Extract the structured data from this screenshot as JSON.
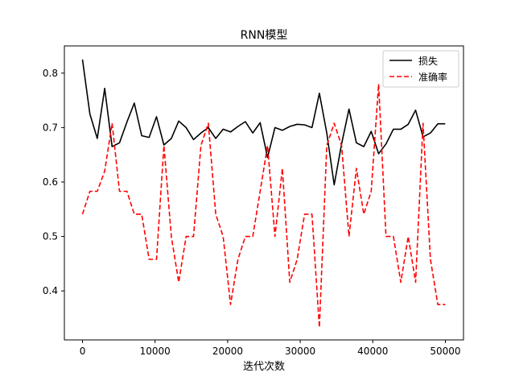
{
  "chart_data": {
    "type": "line",
    "title": "RNN模型",
    "xlabel": "迭代次数",
    "ylabel": "",
    "xlim": [
      -2500,
      52500
    ],
    "ylim": [
      0.31,
      0.85
    ],
    "xticks": [
      0,
      10000,
      20000,
      30000,
      40000,
      50000
    ],
    "yticks": [
      0.4,
      0.5,
      0.6,
      0.7,
      0.8
    ],
    "grid": false,
    "legend_position": "top-right",
    "x": [
      0,
      1020,
      2040,
      3060,
      4080,
      5100,
      6120,
      7140,
      8160,
      9180,
      10200,
      11220,
      12240,
      13260,
      14280,
      15300,
      16320,
      17340,
      18360,
      19380,
      20400,
      21420,
      22440,
      23460,
      24480,
      25500,
      26520,
      27540,
      28560,
      29580,
      30600,
      31620,
      32640,
      33660,
      34680,
      35700,
      36720,
      37740,
      38760,
      39780,
      40800,
      41820,
      42840,
      43860,
      44880,
      45900,
      46920,
      47940,
      48960,
      49980
    ],
    "series": [
      {
        "name": "损失",
        "color": "#000000",
        "dash": "solid",
        "values": [
          0.825,
          0.725,
          0.68,
          0.772,
          0.665,
          0.672,
          0.71,
          0.745,
          0.685,
          0.682,
          0.72,
          0.668,
          0.68,
          0.712,
          0.7,
          0.678,
          0.69,
          0.7,
          0.68,
          0.697,
          0.692,
          0.702,
          0.711,
          0.69,
          0.709,
          0.645,
          0.7,
          0.695,
          0.702,
          0.706,
          0.705,
          0.7,
          0.763,
          0.69,
          0.595,
          0.67,
          0.734,
          0.672,
          0.665,
          0.693,
          0.652,
          0.67,
          0.697,
          0.697,
          0.706,
          0.732,
          0.683,
          0.69,
          0.707,
          0.707
        ]
      },
      {
        "name": "准确率",
        "color": "#ff0000",
        "dash": "dashed",
        "values": [
          0.541,
          0.583,
          0.583,
          0.62,
          0.708,
          0.583,
          0.583,
          0.541,
          0.541,
          0.458,
          0.458,
          0.667,
          0.5,
          0.416,
          0.5,
          0.5,
          0.667,
          0.708,
          0.541,
          0.5,
          0.375,
          0.458,
          0.5,
          0.5,
          0.583,
          0.667,
          0.5,
          0.625,
          0.416,
          0.458,
          0.541,
          0.541,
          0.333,
          0.667,
          0.708,
          0.667,
          0.5,
          0.625,
          0.541,
          0.583,
          0.78,
          0.5,
          0.5,
          0.416,
          0.5,
          0.416,
          0.708,
          0.458,
          0.375,
          0.375
        ]
      }
    ]
  }
}
